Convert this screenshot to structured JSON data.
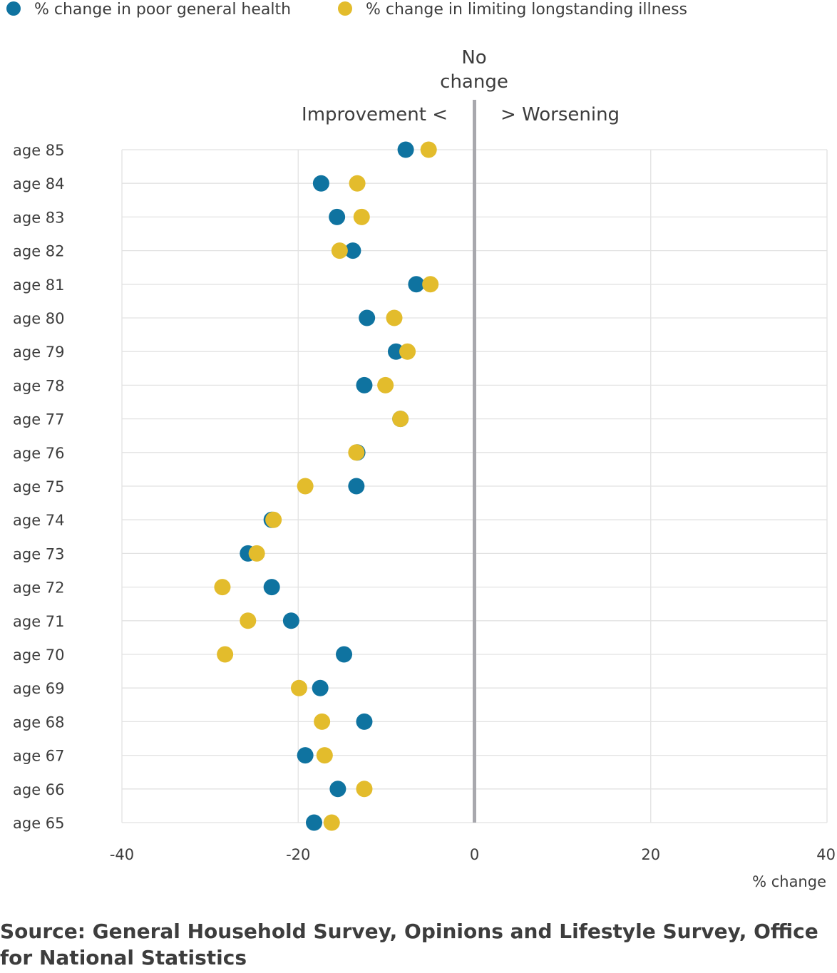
{
  "chart_data": {
    "type": "scatter",
    "title": "",
    "xlabel": "% change",
    "ylabel": "",
    "xlim": [
      -40,
      40
    ],
    "xticks": [
      "-40",
      "-20",
      "0",
      "20",
      "40"
    ],
    "grid": true,
    "legend_position": "top-left",
    "categories": [
      "age 85",
      "age 84",
      "age 83",
      "age 82",
      "age 81",
      "age 80",
      "age 79",
      "age 78",
      "age 77",
      "age 76",
      "age 75",
      "age 74",
      "age 73",
      "age 72",
      "age 71",
      "age 70",
      "age 69",
      "age 68",
      "age 67",
      "age 66",
      "age 65"
    ],
    "series": [
      {
        "name": "% change in poor general health",
        "color": "#0f73a0",
        "values": [
          -7.8,
          -17.4,
          -15.6,
          -13.8,
          -6.6,
          -12.2,
          -8.9,
          -12.5,
          -8.4,
          -13.3,
          -13.4,
          -23.0,
          -25.7,
          -23.0,
          -20.8,
          -14.8,
          -17.5,
          -12.5,
          -19.2,
          -15.5,
          -18.2
        ]
      },
      {
        "name": "% change in limiting longstanding illness",
        "color": "#e3bc2c",
        "values": [
          -5.2,
          -13.3,
          -12.8,
          -15.3,
          -5.0,
          -9.1,
          -7.6,
          -10.1,
          -8.4,
          -13.4,
          -19.2,
          -22.8,
          -24.7,
          -28.6,
          -25.7,
          -28.3,
          -19.9,
          -17.3,
          -17.0,
          -12.5,
          -16.2
        ]
      }
    ],
    "annotations": {
      "no_change_line1": "No",
      "no_change_line2": "change",
      "improvement": "Improvement <",
      "worsening": "> Worsening"
    }
  },
  "source": "Source: General Household Survey, Opinions and Lifestyle Survey, Office for National Statistics"
}
